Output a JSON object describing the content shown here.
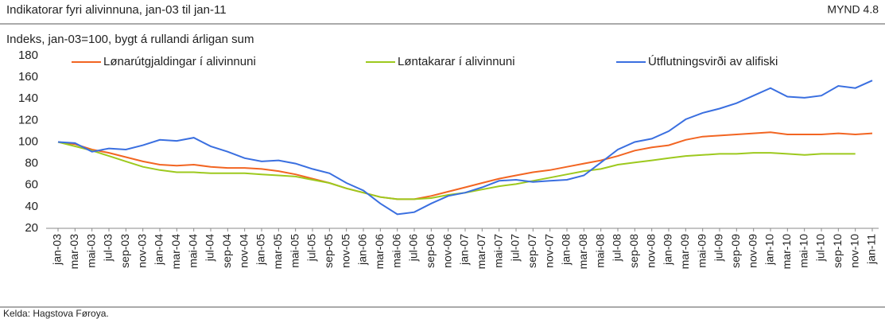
{
  "header": {
    "title": "Indikatorar fyri alivinnuna, jan-03 til jan-11",
    "figure": "MYND 4.8"
  },
  "chart_data": {
    "type": "line",
    "subtitle": "Indeks, jan-03=100, bygt á rullandi árligan sum",
    "categories": [
      "jan-03",
      "mar-03",
      "mai-03",
      "jul-03",
      "sep-03",
      "nov-03",
      "jan-04",
      "mar-04",
      "mai-04",
      "jul-04",
      "sep-04",
      "nov-04",
      "jan-05",
      "mar-05",
      "mai-05",
      "jul-05",
      "sep-05",
      "nov-05",
      "jan-06",
      "mar-06",
      "mai-06",
      "jul-06",
      "sep-06",
      "nov-06",
      "jan-07",
      "mar-07",
      "mai-07",
      "jul-07",
      "sep-07",
      "nov-07",
      "jan-08",
      "mar-08",
      "mai-08",
      "jul-08",
      "sep-08",
      "nov-08",
      "jan-09",
      "mar-09",
      "mai-09",
      "jul-09",
      "sep-09",
      "nov-09",
      "jan-10",
      "mar-10",
      "mai-10",
      "jul-10",
      "sep-10",
      "nov-10",
      "jan-11"
    ],
    "series": [
      {
        "name": "Lønarútgjaldingar í alivinnuni",
        "color": "#f26522",
        "values": [
          100,
          98,
          93,
          90,
          86,
          82,
          79,
          78,
          79,
          77,
          76,
          76,
          75,
          73,
          70,
          66,
          62,
          57,
          53,
          49,
          47,
          47,
          50,
          54,
          58,
          62,
          66,
          69,
          72,
          74,
          77,
          80,
          83,
          87,
          92,
          95,
          97,
          102,
          105,
          106,
          107,
          108,
          109,
          107,
          107,
          107,
          108,
          107,
          108
        ]
      },
      {
        "name": "Løntakarar í alivinnuni",
        "color": "#9dc91e",
        "values": [
          100,
          96,
          92,
          87,
          82,
          77,
          74,
          72,
          72,
          71,
          71,
          71,
          70,
          69,
          68,
          65,
          62,
          57,
          53,
          49,
          47,
          47,
          48,
          51,
          53,
          56,
          59,
          61,
          64,
          67,
          70,
          73,
          75,
          79,
          81,
          83,
          85,
          87,
          88,
          89,
          89,
          90,
          90,
          89,
          88,
          89,
          89,
          89,
          null
        ]
      },
      {
        "name": "Útflutningsvirði av alifiski",
        "color": "#3a6fe0",
        "values": [
          100,
          99,
          91,
          94,
          93,
          97,
          102,
          101,
          104,
          96,
          91,
          85,
          82,
          83,
          80,
          75,
          71,
          62,
          55,
          43,
          33,
          35,
          43,
          50,
          53,
          58,
          64,
          65,
          63,
          64,
          65,
          69,
          81,
          93,
          100,
          103,
          110,
          121,
          127,
          131,
          136,
          143,
          150,
          142,
          141,
          143,
          152,
          150,
          157
        ]
      }
    ],
    "ylim": [
      20,
      180
    ],
    "yticks": [
      20,
      40,
      60,
      80,
      100,
      120,
      140,
      160,
      180
    ],
    "source": "Kelda: Hagstova Føroya."
  }
}
